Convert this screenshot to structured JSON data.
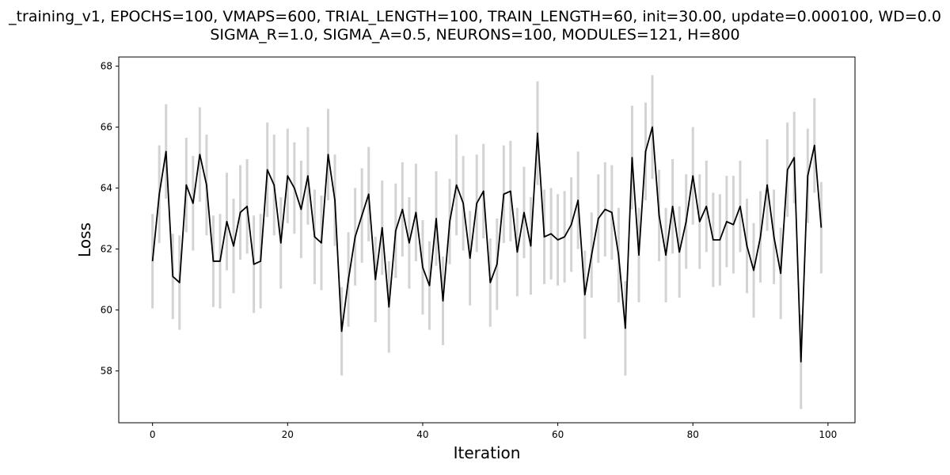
{
  "chart_data": {
    "type": "line",
    "title_lines": [
      "_training_v1, EPOCHS=100, VMAPS=600, TRIAL_LENGTH=100, TRAIN_LENGTH=60, init=30.00, update=0.000100, WD=0.0",
      "SIGMA_R=1.0, SIGMA_A=0.5, NEURONS=100, MODULES=121, H=800"
    ],
    "xlabel": "Iteration",
    "ylabel": "Loss",
    "xlim": [
      -5,
      104
    ],
    "ylim": [
      56.3,
      68.3
    ],
    "xticks": [
      0,
      20,
      40,
      60,
      80,
      100
    ],
    "yticks": [
      58,
      60,
      62,
      64,
      66,
      68
    ],
    "grid": false,
    "line_color": "#000000",
    "error_bar_color": "#d3d3d3",
    "series": [
      {
        "x": [
          0,
          1,
          2,
          3,
          4,
          5,
          6,
          7,
          8,
          9,
          10,
          11,
          12,
          13,
          14,
          15,
          16,
          17,
          18,
          19,
          20,
          21,
          22,
          23,
          24,
          25,
          26,
          27,
          28,
          29,
          30,
          31,
          32,
          33,
          34,
          35,
          36,
          37,
          38,
          39,
          40,
          41,
          42,
          43,
          44,
          45,
          46,
          47,
          48,
          49,
          50,
          51,
          52,
          53,
          54,
          55,
          56,
          57,
          58,
          59,
          60,
          61,
          62,
          63,
          64,
          65,
          66,
          67,
          68,
          69,
          70,
          71,
          72,
          73,
          74,
          75,
          76,
          77,
          78,
          79,
          80,
          81,
          82,
          83,
          84,
          85,
          86,
          87,
          88,
          89,
          90,
          91,
          92,
          93,
          94,
          95,
          96,
          97,
          98,
          99
        ],
        "values": [
          61.6,
          63.8,
          65.2,
          61.1,
          60.9,
          64.1,
          63.5,
          65.1,
          64.1,
          61.6,
          61.6,
          62.9,
          62.1,
          63.2,
          63.4,
          61.5,
          61.6,
          64.6,
          64.1,
          62.2,
          64.4,
          64.0,
          63.3,
          64.4,
          62.4,
          62.2,
          65.1,
          63.6,
          59.3,
          61.0,
          62.4,
          63.1,
          63.8,
          61.0,
          62.7,
          60.1,
          62.6,
          63.3,
          62.2,
          63.2,
          61.4,
          60.8,
          63.0,
          60.3,
          62.9,
          64.1,
          63.5,
          61.7,
          63.5,
          63.9,
          60.9,
          61.5,
          63.8,
          63.9,
          61.9,
          63.2,
          62.1,
          65.8,
          62.4,
          62.5,
          62.3,
          62.4,
          62.8,
          63.6,
          60.5,
          61.8,
          63.0,
          63.3,
          63.2,
          61.8,
          59.4,
          65.0,
          61.8,
          65.2,
          66.0,
          63.1,
          61.8,
          63.4,
          61.9,
          62.9,
          64.4,
          62.9,
          63.4,
          62.3,
          62.3,
          62.9,
          62.8,
          63.4,
          62.1,
          61.3,
          62.4,
          64.1,
          62.4,
          61.2,
          64.6,
          65.0,
          58.3,
          64.4,
          65.4,
          62.7
        ],
        "errors": [
          1.55,
          1.6,
          1.55,
          1.4,
          1.55,
          1.55,
          1.55,
          1.55,
          1.65,
          1.5,
          1.55,
          1.6,
          1.55,
          1.55,
          1.55,
          1.6,
          1.55,
          1.55,
          1.65,
          1.5,
          1.55,
          1.5,
          1.6,
          1.6,
          1.55,
          1.55,
          1.5,
          1.5,
          1.45,
          1.55,
          1.6,
          1.55,
          1.55,
          1.4,
          1.55,
          1.5,
          1.55,
          1.55,
          1.5,
          1.6,
          1.55,
          1.45,
          1.55,
          1.45,
          1.4,
          1.65,
          1.55,
          1.55,
          1.6,
          1.55,
          1.45,
          1.5,
          1.6,
          1.65,
          1.45,
          1.5,
          1.6,
          1.7,
          1.55,
          1.5,
          1.5,
          1.5,
          1.55,
          1.6,
          1.45,
          1.4,
          1.45,
          1.55,
          1.55,
          1.55,
          1.55,
          1.7,
          1.55,
          1.6,
          1.7,
          1.5,
          1.55,
          1.55,
          1.5,
          1.55,
          1.6,
          1.55,
          1.5,
          1.55,
          1.5,
          1.5,
          1.6,
          1.5,
          1.55,
          1.55,
          1.5,
          1.5,
          1.55,
          1.5,
          1.55,
          1.5,
          1.55,
          1.55,
          1.55,
          1.5
        ]
      }
    ]
  }
}
